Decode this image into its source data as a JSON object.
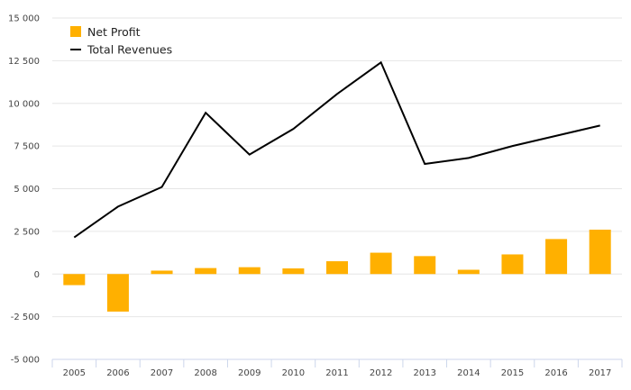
{
  "chart_data": {
    "type": "bar",
    "title": "",
    "xlabel": "",
    "ylabel": "",
    "categories": [
      "2005",
      "2006",
      "2007",
      "2008",
      "2009",
      "2010",
      "2011",
      "2012",
      "2013",
      "2014",
      "2015",
      "2016",
      "2017"
    ],
    "ylim": [
      -5000,
      15000
    ],
    "yticks": [
      -5000,
      -2500,
      0,
      2500,
      5000,
      7500,
      10000,
      12500,
      15000
    ],
    "ytick_labels": [
      "-5 000",
      "-2 500",
      "0",
      "2 500",
      "5 000",
      "7 500",
      "10 000",
      "12 500",
      "15 000"
    ],
    "grid": true,
    "legend_position": "top-left",
    "series": [
      {
        "name": "Net Profit",
        "kind": "bar",
        "color": "#FFB000",
        "values": [
          -650,
          -2200,
          200,
          350,
          400,
          330,
          750,
          1250,
          1050,
          250,
          1150,
          2050,
          2600
        ]
      },
      {
        "name": "Total Revenues",
        "kind": "line",
        "color": "#000000",
        "values": [
          2150,
          3950,
          5100,
          9450,
          7000,
          8500,
          10550,
          12400,
          6450,
          6800,
          7500,
          8100,
          8700
        ]
      }
    ]
  }
}
